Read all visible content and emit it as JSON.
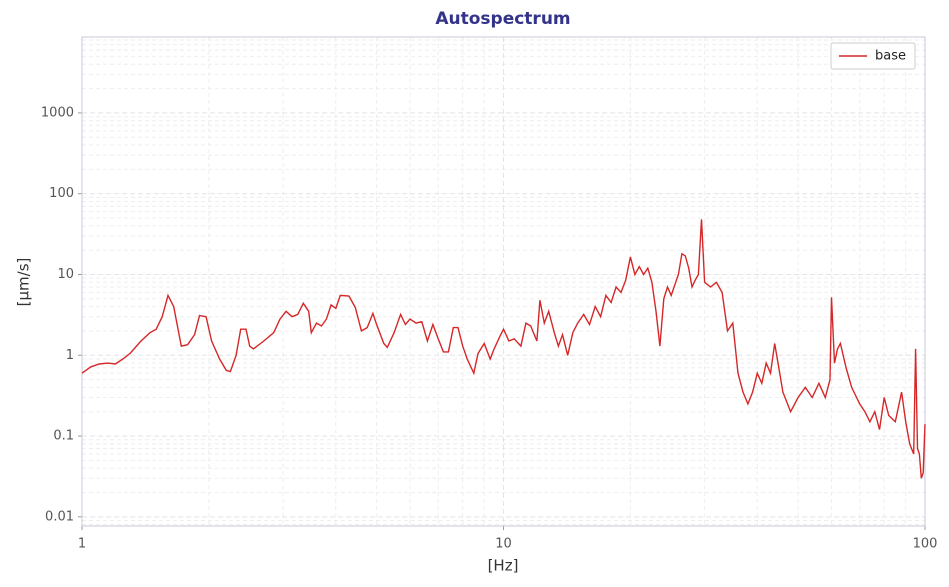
{
  "chart_data": {
    "type": "line",
    "title": "Autospectrum",
    "xlabel": "[Hz]",
    "ylabel": "[µm/s]",
    "xlog": true,
    "ylog": true,
    "grid": true,
    "legend": "upper right",
    "xlim": [
      1,
      100
    ],
    "ylim": [
      0.0077,
      8700
    ],
    "xticks": [
      1,
      10,
      100
    ],
    "yticks": [
      0.01,
      0.1,
      1,
      10,
      100,
      1000
    ],
    "x": [
      1.0,
      1.05,
      1.1,
      1.15,
      1.2,
      1.25,
      1.3,
      1.38,
      1.45,
      1.5,
      1.55,
      1.6,
      1.65,
      1.72,
      1.78,
      1.85,
      1.9,
      1.97,
      2.03,
      2.12,
      2.2,
      2.25,
      2.32,
      2.38,
      2.45,
      2.5,
      2.55,
      2.7,
      2.85,
      2.95,
      3.05,
      3.15,
      3.25,
      3.35,
      3.45,
      3.5,
      3.6,
      3.7,
      3.8,
      3.9,
      4.0,
      4.1,
      4.3,
      4.45,
      4.6,
      4.75,
      4.9,
      5.0,
      5.2,
      5.3,
      5.5,
      5.7,
      5.85,
      6.0,
      6.2,
      6.4,
      6.6,
      6.8,
      7.0,
      7.2,
      7.4,
      7.6,
      7.8,
      8.0,
      8.2,
      8.5,
      8.7,
      9.0,
      9.3,
      9.5,
      9.8,
      10.0,
      10.3,
      10.6,
      11.0,
      11.3,
      11.6,
      12.0,
      12.2,
      12.5,
      12.8,
      13.2,
      13.5,
      13.8,
      14.2,
      14.6,
      15.0,
      15.5,
      16.0,
      16.5,
      17.0,
      17.5,
      18.0,
      18.5,
      19.0,
      19.5,
      20.0,
      20.5,
      21.0,
      21.5,
      22.0,
      22.5,
      23.0,
      23.5,
      24.0,
      24.5,
      25.0,
      26.0,
      26.5,
      27.0,
      27.5,
      28.0,
      28.5,
      29.0,
      29.5,
      30,
      31,
      32,
      33,
      34,
      35,
      36,
      37,
      38,
      39,
      40,
      41,
      42,
      43,
      44,
      45,
      46,
      48,
      50,
      52,
      54,
      56,
      58,
      59.5,
      60,
      61,
      62,
      63,
      65,
      67,
      70,
      72,
      74,
      76,
      78,
      80,
      82,
      85,
      88,
      90,
      92,
      94,
      95,
      96,
      97,
      98,
      99,
      100
    ],
    "series": [
      {
        "name": "base",
        "color": "#d62728",
        "values": [
          0.6,
          0.72,
          0.78,
          0.8,
          0.78,
          0.9,
          1.05,
          1.5,
          1.9,
          2.1,
          3.0,
          5.5,
          4.0,
          1.3,
          1.35,
          1.8,
          3.1,
          3.0,
          1.5,
          0.9,
          0.65,
          0.63,
          1.0,
          2.1,
          2.1,
          1.3,
          1.2,
          1.5,
          1.9,
          2.8,
          3.5,
          3.0,
          3.2,
          4.4,
          3.5,
          1.9,
          2.5,
          2.3,
          2.8,
          4.2,
          3.8,
          5.5,
          5.4,
          3.9,
          2.0,
          2.2,
          3.3,
          2.4,
          1.4,
          1.25,
          1.9,
          3.2,
          2.4,
          2.8,
          2.5,
          2.6,
          1.5,
          2.4,
          1.6,
          1.1,
          1.1,
          2.2,
          2.2,
          1.3,
          0.9,
          0.6,
          1.05,
          1.4,
          0.9,
          1.2,
          1.7,
          2.1,
          1.5,
          1.6,
          1.3,
          2.5,
          2.3,
          1.5,
          4.8,
          2.5,
          3.5,
          1.9,
          1.3,
          1.8,
          1.0,
          1.9,
          2.5,
          3.2,
          2.4,
          4.0,
          3.0,
          5.5,
          4.5,
          7.0,
          6.0,
          8.5,
          16.5,
          10.0,
          12.5,
          10.0,
          12.0,
          8.0,
          3.5,
          1.3,
          5.0,
          7.0,
          5.5,
          10,
          18,
          17,
          12,
          7,
          8.5,
          10,
          48,
          8,
          7,
          8,
          6,
          2,
          2.5,
          0.6,
          0.35,
          0.25,
          0.35,
          0.6,
          0.45,
          0.8,
          0.6,
          1.4,
          0.7,
          0.35,
          0.2,
          0.3,
          0.4,
          0.3,
          0.45,
          0.3,
          0.5,
          5.2,
          0.8,
          1.2,
          1.4,
          0.7,
          0.4,
          0.25,
          0.2,
          0.15,
          0.2,
          0.12,
          0.3,
          0.18,
          0.15,
          0.35,
          0.15,
          0.08,
          0.06,
          1.2,
          0.07,
          0.06,
          0.03,
          0.035,
          0.14
        ]
      }
    ]
  }
}
